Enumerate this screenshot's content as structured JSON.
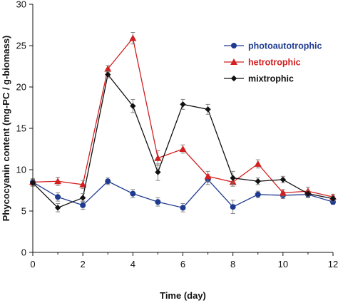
{
  "chart_data": {
    "type": "line",
    "title": "",
    "xlabel": "Time (day)",
    "ylabel": "Phycocyanin content (mg-PC / g-biomass)",
    "xlim": [
      0,
      12
    ],
    "ylim": [
      0,
      30
    ],
    "xticks": [
      0,
      2,
      4,
      6,
      8,
      10,
      12
    ],
    "yticks": [
      0,
      5,
      10,
      15,
      20,
      25,
      30
    ],
    "grid": false,
    "legend_position": "top-right",
    "x": [
      0,
      1,
      2,
      3,
      4,
      5,
      6,
      7,
      8,
      9,
      10,
      11,
      12
    ],
    "series": [
      {
        "name": "photoautotrophic",
        "color": "#1f3b8f",
        "marker": "circle",
        "values": [
          8.5,
          6.7,
          5.7,
          8.6,
          7.1,
          6.1,
          5.4,
          8.8,
          5.5,
          7.0,
          6.9,
          7.0,
          6.1
        ],
        "errors": [
          0.4,
          0.5,
          0.5,
          0.4,
          0.5,
          0.5,
          0.5,
          0.6,
          0.8,
          0.4,
          0.4,
          0.4,
          0.3
        ]
      },
      {
        "name": "hetrotrophic",
        "color": "#d21f1f",
        "marker": "triangle",
        "values": [
          8.5,
          8.6,
          8.2,
          22.2,
          25.9,
          11.4,
          12.5,
          9.2,
          8.5,
          10.7,
          7.2,
          7.4,
          6.7
        ],
        "errors": [
          0.4,
          0.5,
          0.5,
          0.4,
          0.7,
          0.9,
          0.5,
          0.6,
          0.5,
          0.5,
          0.4,
          0.5,
          0.3
        ]
      },
      {
        "name": "mixtrophic",
        "color": "#111111",
        "marker": "diamond",
        "values": [
          8.4,
          5.4,
          6.6,
          21.5,
          17.7,
          9.7,
          17.9,
          17.3,
          9.0,
          8.6,
          8.8,
          7.1,
          6.5
        ],
        "errors": [
          0.4,
          0.5,
          0.5,
          0.4,
          0.8,
          1.0,
          0.6,
          0.6,
          0.8,
          0.4,
          0.4,
          0.4,
          0.3
        ]
      }
    ]
  }
}
